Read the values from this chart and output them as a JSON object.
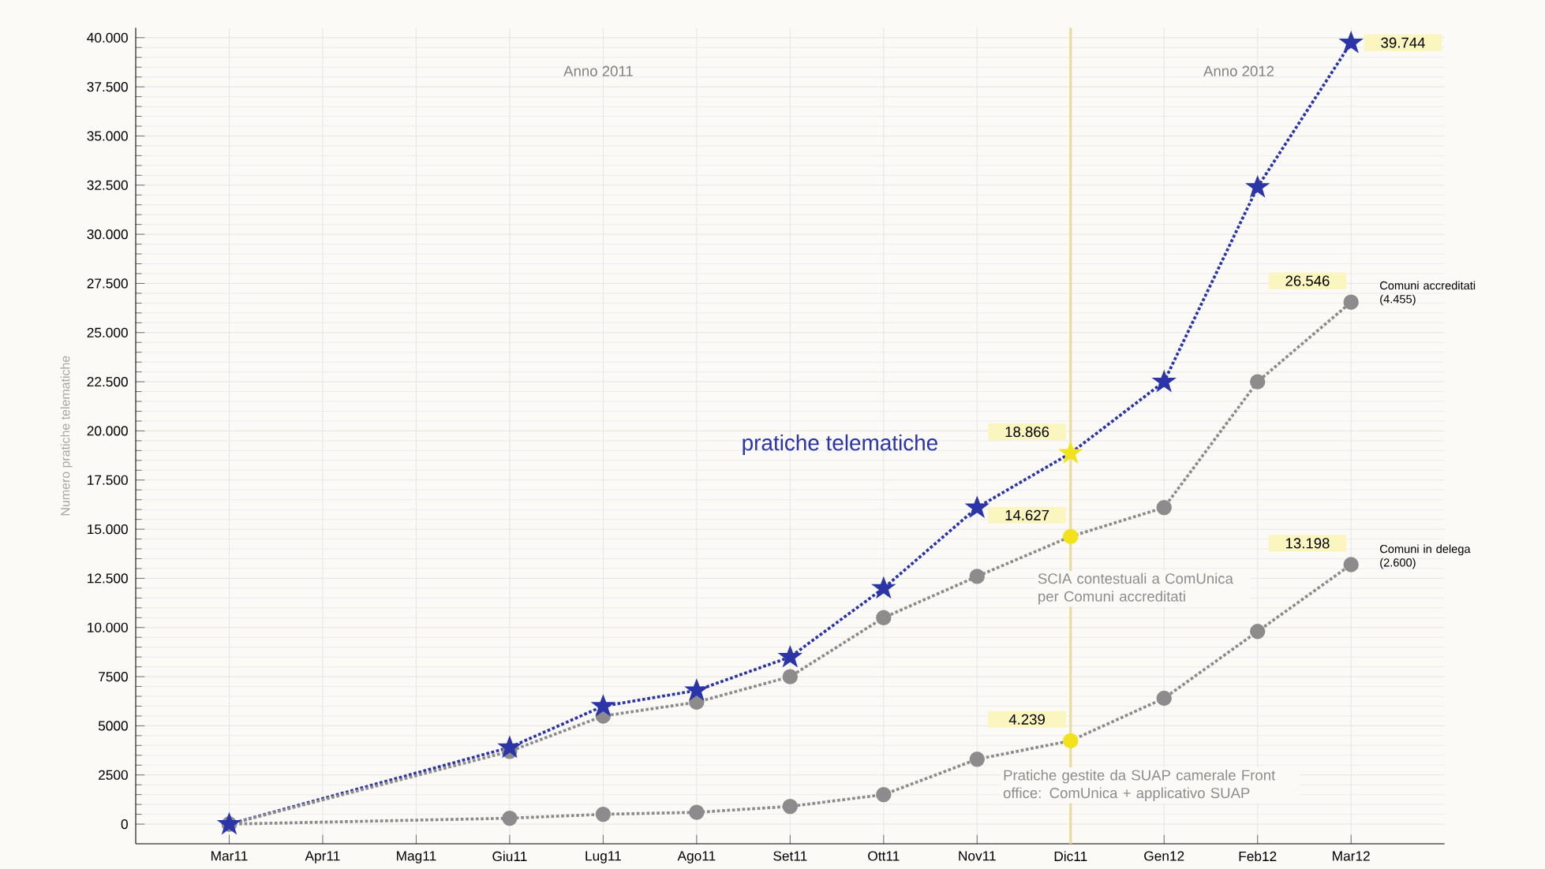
{
  "chart_data": {
    "type": "line",
    "ylabel": "Numero pratiche telematiche",
    "categories": [
      "Mar11",
      "Apr11",
      "Mag11",
      "Giu11",
      "Lug11",
      "Ago11",
      "Set11",
      "Ott11",
      "Nov11",
      "Dic11",
      "Gen12",
      "Feb12",
      "Mar12"
    ],
    "series": [
      {
        "name": "pratiche telematiche",
        "color": "#2b35a8",
        "marker": "star",
        "values": [
          0,
          null,
          null,
          3900,
          6000,
          6800,
          8500,
          12000,
          16100,
          18866,
          22500,
          32400,
          39744
        ],
        "value_labels": [
          null,
          null,
          null,
          null,
          null,
          null,
          null,
          null,
          null,
          "18.866",
          null,
          null,
          "39.744"
        ],
        "colors": [
          "#2b35a8",
          "#2b35a8",
          "#2b35a8",
          "#2b35a8",
          "#2b35a8",
          "#2b35a8",
          "#2b35a8",
          "#2b35a8",
          "#2b35a8",
          "#f2e21a",
          "#2b35a8",
          "#2b35a8",
          "#2b35a8"
        ]
      },
      {
        "name": "SCIA contestuali a ComUnica per Comuni accreditati",
        "color": "#8c8c8c",
        "marker": "circle",
        "values": [
          0,
          null,
          null,
          3700,
          5500,
          6200,
          7500,
          10500,
          12600,
          14627,
          16100,
          22500,
          26546
        ],
        "value_labels": [
          null,
          null,
          null,
          null,
          null,
          null,
          null,
          null,
          null,
          "14.627",
          null,
          null,
          "26.546"
        ],
        "colors": [
          "#8c8c8c",
          "#8c8c8c",
          "#8c8c8c",
          "#8c8c8c",
          "#8c8c8c",
          "#8c8c8c",
          "#8c8c8c",
          "#8c8c8c",
          "#8c8c8c",
          "#f2e21a",
          "#8c8c8c",
          "#8c8c8c",
          "#8c8c8c"
        ]
      },
      {
        "name": "Pratiche gestite da SUAP camerale Front office: ComUnica + applicativo SUAP",
        "color": "#8c8c8c",
        "marker": "circle",
        "values": [
          0,
          null,
          null,
          300,
          500,
          600,
          900,
          1500,
          3300,
          4239,
          6400,
          9800,
          13198
        ],
        "value_labels": [
          null,
          null,
          null,
          null,
          null,
          null,
          null,
          null,
          null,
          "4.239",
          null,
          null,
          "13.198"
        ],
        "colors": [
          "#8c8c8c",
          "#8c8c8c",
          "#8c8c8c",
          "#8c8c8c",
          "#8c8c8c",
          "#8c8c8c",
          "#8c8c8c",
          "#8c8c8c",
          "#8c8c8c",
          "#f2e21a",
          "#8c8c8c",
          "#8c8c8c",
          "#8c8c8c"
        ]
      }
    ],
    "ylim": [
      -1000,
      40500
    ],
    "yticks": [
      0,
      2500,
      5000,
      7500,
      {
        "value": 10000,
        "label": "10.000"
      },
      {
        "value": 12500,
        "label": "12.500"
      },
      {
        "value": 15000,
        "label": "15.000"
      },
      {
        "value": 17500,
        "label": "17.500"
      },
      {
        "value": 20000,
        "label": "20.000"
      },
      {
        "value": 22500,
        "label": "22.500"
      },
      {
        "value": 25000,
        "label": "25.000"
      },
      {
        "value": 27500,
        "label": "27.500"
      },
      {
        "value": 30000,
        "label": "30.000"
      },
      {
        "value": 32500,
        "label": "32.500"
      },
      {
        "value": 35000,
        "label": "35.000"
      },
      {
        "value": 37500,
        "label": "37.500"
      },
      {
        "value": 40000,
        "label": "40.000"
      }
    ],
    "grid": true,
    "line_style": "dotted",
    "ref_lines": [
      {
        "axis": "x",
        "value": "Dic11",
        "color": "#e8dca0"
      }
    ],
    "annotations": [
      "Anno 2011",
      "Anno 2012",
      "Comuni accreditati (4.455)",
      "Comuni in delega (2.600)"
    ]
  }
}
